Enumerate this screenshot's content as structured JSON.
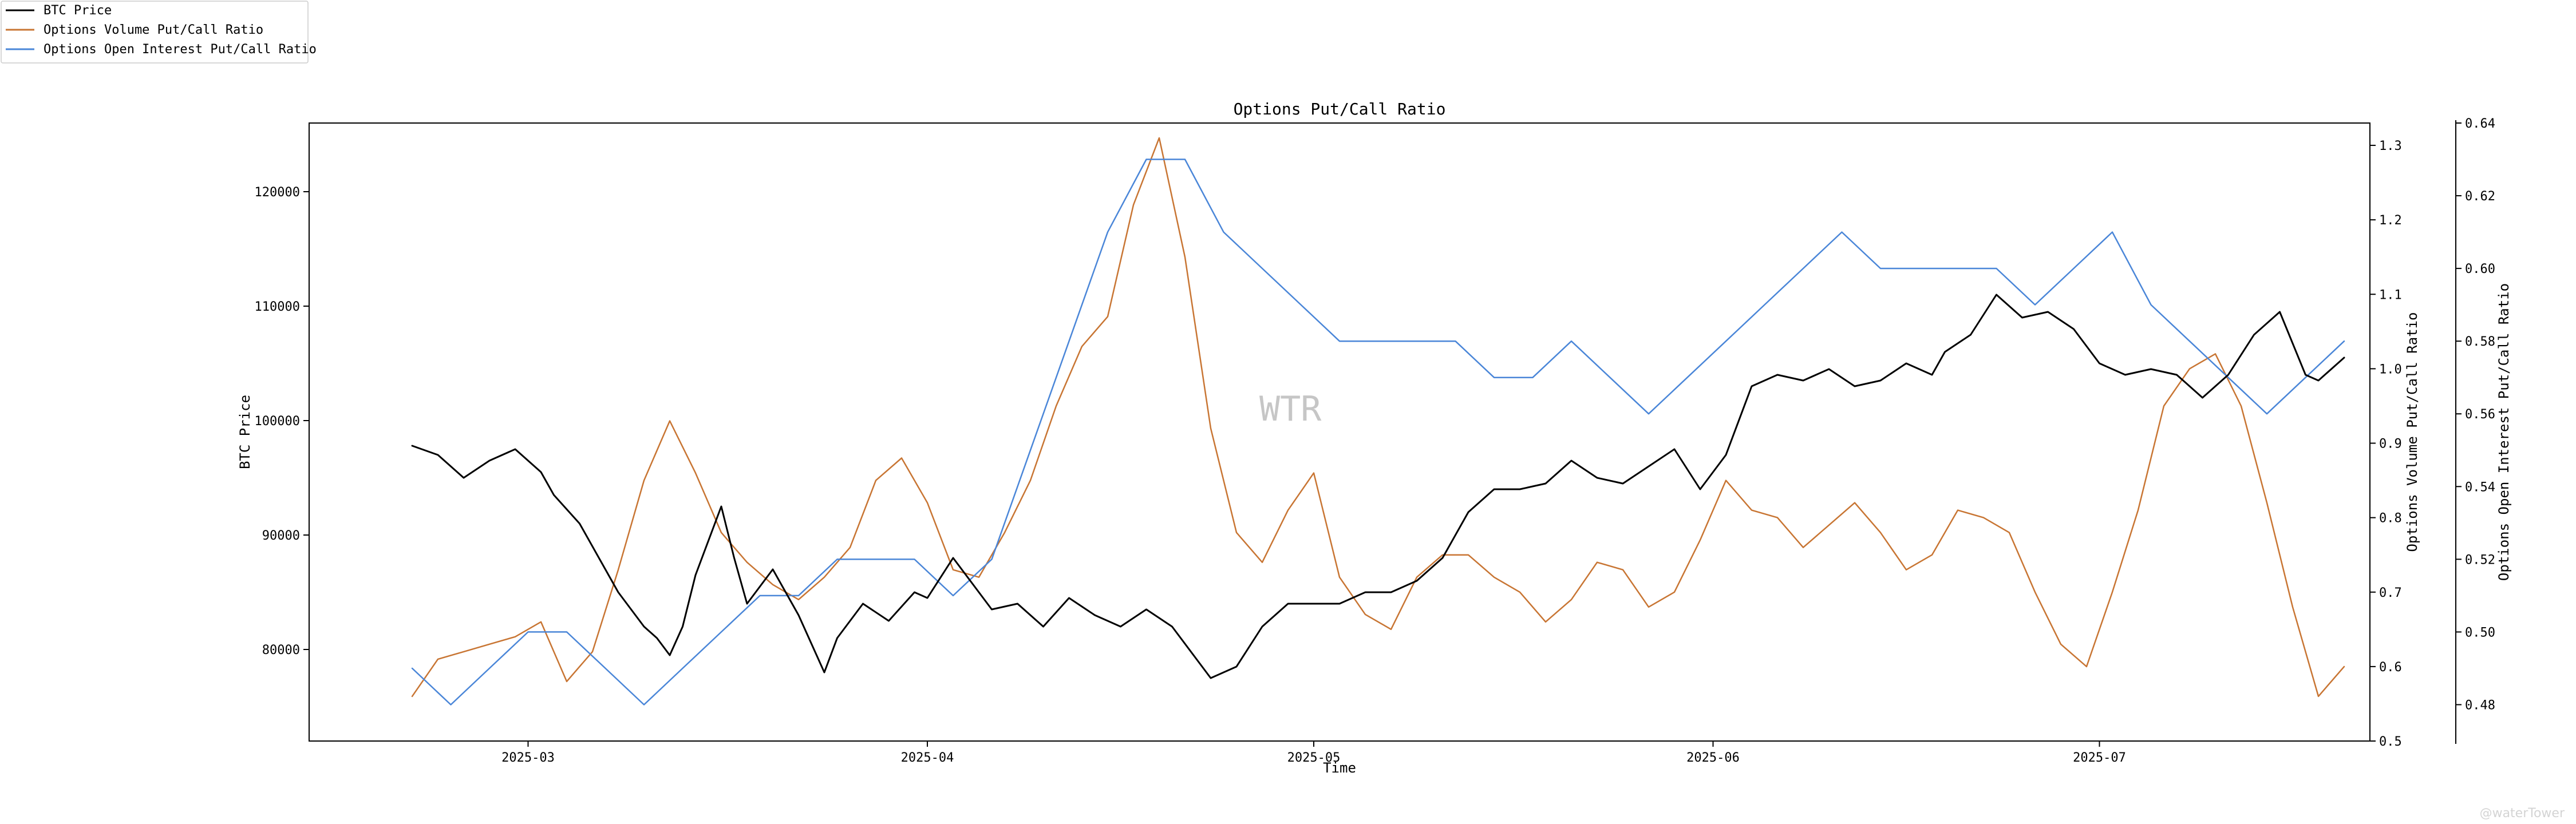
{
  "chart_data": {
    "type": "line",
    "title": "Options Put/Call Ratio",
    "xlabel": "Time",
    "x_range": [
      "2025-02-12",
      "2025-07-22"
    ],
    "x_ticks": [
      "2025-03-01",
      "2025-04-01",
      "2025-05-01",
      "2025-06-01",
      "2025-07-01"
    ],
    "x_tick_labels": [
      "2025-03",
      "2025-04",
      "2025-05",
      "2025-06",
      "2025-07"
    ],
    "legend_position": "top-left",
    "watermark": "WTR",
    "corner_mark": "@waterTower",
    "axes": {
      "left": {
        "label": "BTC Price",
        "ylim": [
          72000,
          126000
        ],
        "ticks": [
          80000,
          90000,
          100000,
          110000,
          120000
        ]
      },
      "right1": {
        "label": "Options Volume Put/Call Ratio",
        "ylim": [
          0.5,
          1.33
        ],
        "ticks": [
          0.5,
          0.6,
          0.7,
          0.8,
          0.9,
          1.0,
          1.1,
          1.2,
          1.3
        ]
      },
      "right2": {
        "label": "Options Open Interest Put/Call Ratio",
        "ylim": [
          0.47,
          0.64
        ],
        "ticks": [
          0.48,
          0.5,
          0.52,
          0.54,
          0.56,
          0.58,
          0.6,
          0.62,
          0.64
        ]
      }
    },
    "series": [
      {
        "name": "BTC Price",
        "axis": "left",
        "color": "#000000",
        "points": [
          [
            "2025-02-20",
            97800
          ],
          [
            "2025-02-22",
            97000
          ],
          [
            "2025-02-24",
            95000
          ],
          [
            "2025-02-26",
            96500
          ],
          [
            "2025-02-28",
            97500
          ],
          [
            "2025-03-02",
            95500
          ],
          [
            "2025-03-03",
            93500
          ],
          [
            "2025-03-05",
            91000
          ],
          [
            "2025-03-07",
            87000
          ],
          [
            "2025-03-08",
            85000
          ],
          [
            "2025-03-09",
            83500
          ],
          [
            "2025-03-10",
            82000
          ],
          [
            "2025-03-11",
            81000
          ],
          [
            "2025-03-12",
            79500
          ],
          [
            "2025-03-13",
            82000
          ],
          [
            "2025-03-14",
            86500
          ],
          [
            "2025-03-16",
            92500
          ],
          [
            "2025-03-17",
            88000
          ],
          [
            "2025-03-18",
            84000
          ],
          [
            "2025-03-20",
            87000
          ],
          [
            "2025-03-22",
            83000
          ],
          [
            "2025-03-24",
            78000
          ],
          [
            "2025-03-25",
            81000
          ],
          [
            "2025-03-27",
            84000
          ],
          [
            "2025-03-29",
            82500
          ],
          [
            "2025-03-31",
            85000
          ],
          [
            "2025-04-01",
            84500
          ],
          [
            "2025-04-03",
            88000
          ],
          [
            "2025-04-05",
            85000
          ],
          [
            "2025-04-06",
            83500
          ],
          [
            "2025-04-08",
            84000
          ],
          [
            "2025-04-10",
            82000
          ],
          [
            "2025-04-12",
            84500
          ],
          [
            "2025-04-14",
            83000
          ],
          [
            "2025-04-16",
            82000
          ],
          [
            "2025-04-18",
            83500
          ],
          [
            "2025-04-20",
            82000
          ],
          [
            "2025-04-22",
            79000
          ],
          [
            "2025-04-23",
            77500
          ],
          [
            "2025-04-25",
            78500
          ],
          [
            "2025-04-27",
            82000
          ],
          [
            "2025-04-29",
            84000
          ],
          [
            "2025-05-01",
            84000
          ],
          [
            "2025-05-03",
            84000
          ],
          [
            "2025-05-05",
            85000
          ],
          [
            "2025-05-07",
            85000
          ],
          [
            "2025-05-09",
            86000
          ],
          [
            "2025-05-11",
            88000
          ],
          [
            "2025-05-13",
            92000
          ],
          [
            "2025-05-15",
            94000
          ],
          [
            "2025-05-17",
            94000
          ],
          [
            "2025-05-19",
            94500
          ],
          [
            "2025-05-21",
            96500
          ],
          [
            "2025-05-23",
            95000
          ],
          [
            "2025-05-25",
            94500
          ],
          [
            "2025-05-27",
            96000
          ],
          [
            "2025-05-29",
            97500
          ],
          [
            "2025-05-31",
            94000
          ],
          [
            "2025-06-02",
            97000
          ],
          [
            "2025-06-04",
            103000
          ],
          [
            "2025-06-06",
            104000
          ],
          [
            "2025-06-08",
            103500
          ],
          [
            "2025-06-10",
            104500
          ],
          [
            "2025-06-12",
            103000
          ],
          [
            "2025-06-14",
            103500
          ],
          [
            "2025-06-16",
            105000
          ],
          [
            "2025-06-18",
            104000
          ],
          [
            "2025-06-19",
            106000
          ],
          [
            "2025-06-21",
            107500
          ],
          [
            "2025-06-23",
            111000
          ],
          [
            "2025-06-25",
            109000
          ],
          [
            "2025-06-27",
            109500
          ],
          [
            "2025-06-29",
            108000
          ],
          [
            "2025-07-01",
            105000
          ],
          [
            "2025-07-03",
            104000
          ],
          [
            "2025-07-05",
            104500
          ],
          [
            "2025-07-07",
            104000
          ],
          [
            "2025-07-09",
            102000
          ],
          [
            "2025-07-11",
            104000
          ],
          [
            "2025-07-13",
            107500
          ],
          [
            "2025-07-15",
            109500
          ],
          [
            "2025-07-17",
            104000
          ],
          [
            "2025-07-18",
            103500
          ],
          [
            "2025-07-20",
            105500
          ]
        ]
      },
      {
        "name": "Options Volume Put/Call Ratio",
        "axis": "right1",
        "color": "#c87533",
        "points": [
          [
            "2025-02-20",
            0.56
          ],
          [
            "2025-02-22",
            0.61
          ],
          [
            "2025-02-24",
            0.62
          ],
          [
            "2025-02-26",
            0.63
          ],
          [
            "2025-02-28",
            0.64
          ],
          [
            "2025-03-02",
            0.66
          ],
          [
            "2025-03-04",
            0.58
          ],
          [
            "2025-03-06",
            0.62
          ],
          [
            "2025-03-08",
            0.73
          ],
          [
            "2025-03-10",
            0.85
          ],
          [
            "2025-03-12",
            0.93
          ],
          [
            "2025-03-14",
            0.86
          ],
          [
            "2025-03-16",
            0.78
          ],
          [
            "2025-03-18",
            0.74
          ],
          [
            "2025-03-20",
            0.71
          ],
          [
            "2025-03-22",
            0.69
          ],
          [
            "2025-03-24",
            0.72
          ],
          [
            "2025-03-26",
            0.76
          ],
          [
            "2025-03-28",
            0.85
          ],
          [
            "2025-03-30",
            0.88
          ],
          [
            "2025-04-01",
            0.82
          ],
          [
            "2025-04-03",
            0.73
          ],
          [
            "2025-04-05",
            0.72
          ],
          [
            "2025-04-07",
            0.78
          ],
          [
            "2025-04-09",
            0.85
          ],
          [
            "2025-04-11",
            0.95
          ],
          [
            "2025-04-13",
            1.03
          ],
          [
            "2025-04-15",
            1.07
          ],
          [
            "2025-04-17",
            1.22
          ],
          [
            "2025-04-19",
            1.31
          ],
          [
            "2025-04-21",
            1.15
          ],
          [
            "2025-04-23",
            0.92
          ],
          [
            "2025-04-25",
            0.78
          ],
          [
            "2025-04-27",
            0.74
          ],
          [
            "2025-04-29",
            0.81
          ],
          [
            "2025-05-01",
            0.86
          ],
          [
            "2025-05-03",
            0.72
          ],
          [
            "2025-05-05",
            0.67
          ],
          [
            "2025-05-07",
            0.65
          ],
          [
            "2025-05-09",
            0.72
          ],
          [
            "2025-05-11",
            0.75
          ],
          [
            "2025-05-13",
            0.75
          ],
          [
            "2025-05-15",
            0.72
          ],
          [
            "2025-05-17",
            0.7
          ],
          [
            "2025-05-19",
            0.66
          ],
          [
            "2025-05-21",
            0.69
          ],
          [
            "2025-05-23",
            0.74
          ],
          [
            "2025-05-25",
            0.73
          ],
          [
            "2025-05-27",
            0.68
          ],
          [
            "2025-05-29",
            0.7
          ],
          [
            "2025-05-31",
            0.77
          ],
          [
            "2025-06-02",
            0.85
          ],
          [
            "2025-06-04",
            0.81
          ],
          [
            "2025-06-06",
            0.8
          ],
          [
            "2025-06-08",
            0.76
          ],
          [
            "2025-06-10",
            0.79
          ],
          [
            "2025-06-12",
            0.82
          ],
          [
            "2025-06-14",
            0.78
          ],
          [
            "2025-06-16",
            0.73
          ],
          [
            "2025-06-18",
            0.75
          ],
          [
            "2025-06-20",
            0.81
          ],
          [
            "2025-06-22",
            0.8
          ],
          [
            "2025-06-24",
            0.78
          ],
          [
            "2025-06-26",
            0.7
          ],
          [
            "2025-06-28",
            0.63
          ],
          [
            "2025-06-30",
            0.6
          ],
          [
            "2025-07-02",
            0.7
          ],
          [
            "2025-07-04",
            0.81
          ],
          [
            "2025-07-06",
            0.95
          ],
          [
            "2025-07-08",
            1.0
          ],
          [
            "2025-07-10",
            1.02
          ],
          [
            "2025-07-12",
            0.95
          ],
          [
            "2025-07-14",
            0.82
          ],
          [
            "2025-07-16",
            0.68
          ],
          [
            "2025-07-18",
            0.56
          ],
          [
            "2025-07-20",
            0.6
          ]
        ]
      },
      {
        "name": "Options Open Interest Put/Call Ratio",
        "axis": "right2",
        "color": "#4a86d8",
        "points": [
          [
            "2025-02-20",
            0.49
          ],
          [
            "2025-02-23",
            0.48
          ],
          [
            "2025-02-26",
            0.49
          ],
          [
            "2025-03-01",
            0.5
          ],
          [
            "2025-03-04",
            0.5
          ],
          [
            "2025-03-07",
            0.49
          ],
          [
            "2025-03-10",
            0.48
          ],
          [
            "2025-03-13",
            0.49
          ],
          [
            "2025-03-16",
            0.5
          ],
          [
            "2025-03-19",
            0.51
          ],
          [
            "2025-03-22",
            0.51
          ],
          [
            "2025-03-25",
            0.52
          ],
          [
            "2025-03-28",
            0.52
          ],
          [
            "2025-03-31",
            0.52
          ],
          [
            "2025-04-03",
            0.51
          ],
          [
            "2025-04-06",
            0.52
          ],
          [
            "2025-04-09",
            0.55
          ],
          [
            "2025-04-12",
            0.58
          ],
          [
            "2025-04-15",
            0.61
          ],
          [
            "2025-04-18",
            0.63
          ],
          [
            "2025-04-21",
            0.63
          ],
          [
            "2025-04-24",
            0.61
          ],
          [
            "2025-04-27",
            0.6
          ],
          [
            "2025-04-30",
            0.59
          ],
          [
            "2025-05-03",
            0.58
          ],
          [
            "2025-05-06",
            0.58
          ],
          [
            "2025-05-09",
            0.58
          ],
          [
            "2025-05-12",
            0.58
          ],
          [
            "2025-05-15",
            0.57
          ],
          [
            "2025-05-18",
            0.57
          ],
          [
            "2025-05-21",
            0.58
          ],
          [
            "2025-05-24",
            0.57
          ],
          [
            "2025-05-27",
            0.56
          ],
          [
            "2025-05-30",
            0.57
          ],
          [
            "2025-06-02",
            0.58
          ],
          [
            "2025-06-05",
            0.59
          ],
          [
            "2025-06-08",
            0.6
          ],
          [
            "2025-06-11",
            0.61
          ],
          [
            "2025-06-14",
            0.6
          ],
          [
            "2025-06-17",
            0.6
          ],
          [
            "2025-06-20",
            0.6
          ],
          [
            "2025-06-23",
            0.6
          ],
          [
            "2025-06-26",
            0.59
          ],
          [
            "2025-06-29",
            0.6
          ],
          [
            "2025-07-02",
            0.61
          ],
          [
            "2025-07-05",
            0.59
          ],
          [
            "2025-07-08",
            0.58
          ],
          [
            "2025-07-11",
            0.57
          ],
          [
            "2025-07-14",
            0.56
          ],
          [
            "2025-07-17",
            0.57
          ],
          [
            "2025-07-20",
            0.58
          ]
        ]
      }
    ]
  }
}
